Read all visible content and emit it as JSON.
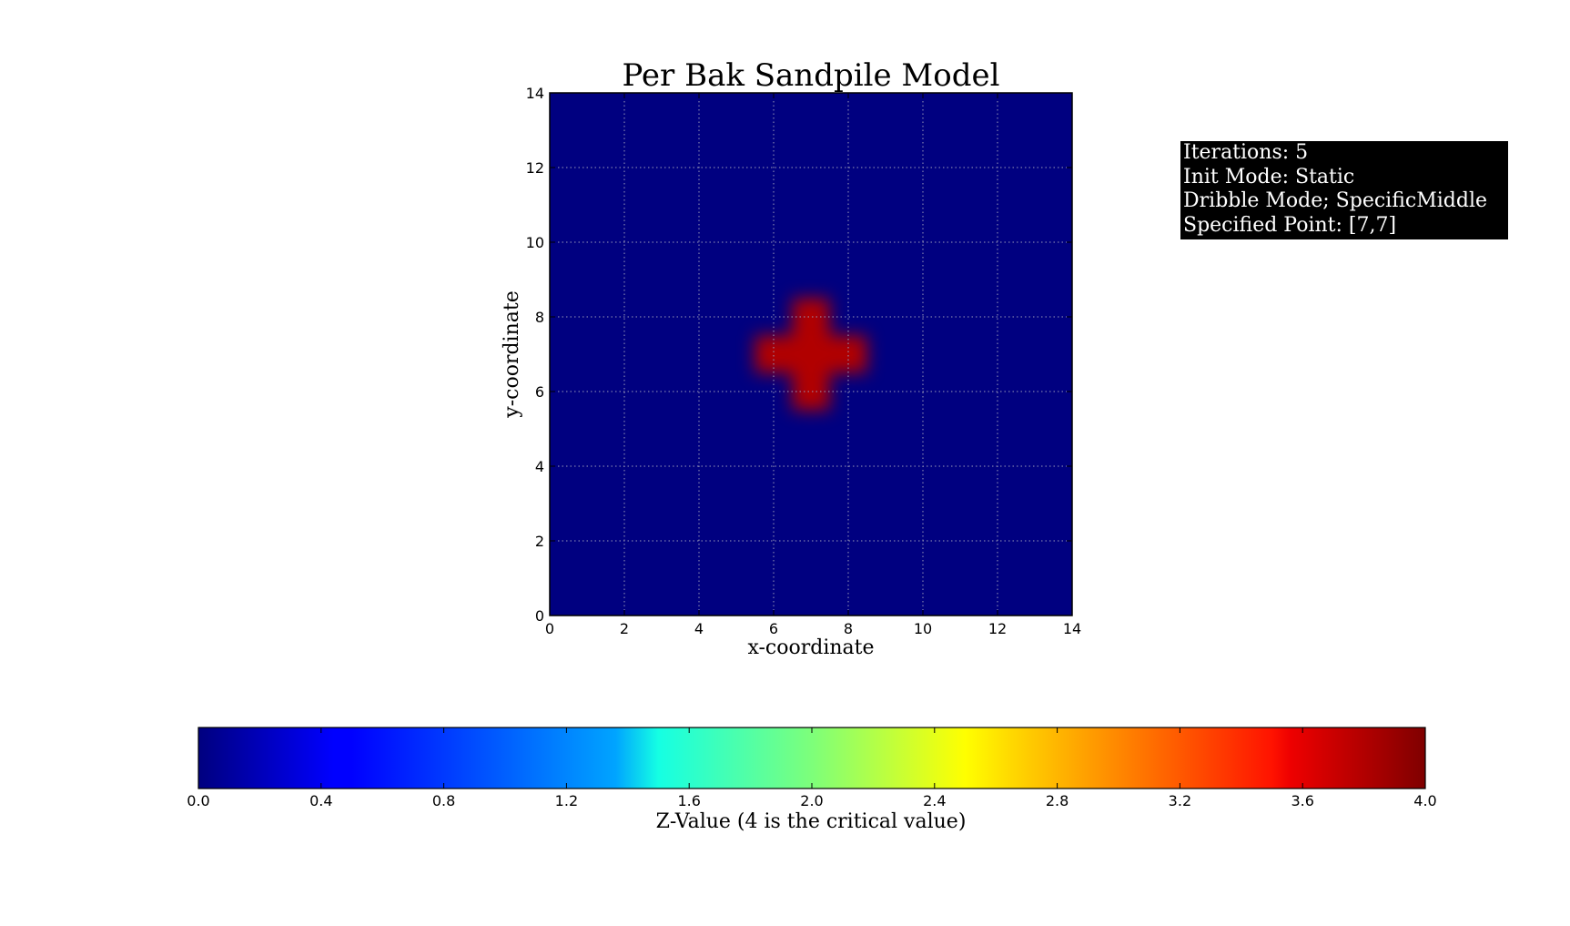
{
  "chart_data": [
    {
      "type": "heatmap",
      "title": "Per Bak Sandpile Model",
      "xlabel": "x-coordinate",
      "ylabel": "y-coordinate",
      "xlim": [
        0,
        14
      ],
      "ylim": [
        0,
        14
      ],
      "xticks": [
        "0",
        "2",
        "4",
        "6",
        "8",
        "10",
        "12",
        "14"
      ],
      "yticks": [
        "0",
        "2",
        "4",
        "6",
        "8",
        "10",
        "12",
        "14"
      ],
      "grid": true,
      "colormap": "jet",
      "vmin": 0,
      "vmax": 4,
      "cells": [
        {
          "x": 7,
          "y": 7,
          "value": 3.8
        },
        {
          "x": 6,
          "y": 7,
          "value": 3.8
        },
        {
          "x": 8,
          "y": 7,
          "value": 3.8
        },
        {
          "x": 7,
          "y": 6,
          "value": 3.8
        },
        {
          "x": 7,
          "y": 8,
          "value": 3.8
        }
      ],
      "background_value": 0
    },
    {
      "type": "colorbar",
      "label": "Z-Value (4 is the critical value)",
      "range": [
        0,
        4
      ],
      "ticks": [
        "0.0",
        "0.4",
        "0.8",
        "1.2",
        "1.6",
        "2.0",
        "2.4",
        "2.8",
        "3.2",
        "3.6",
        "4.0"
      ],
      "colormap": "jet",
      "orientation": "horizontal"
    }
  ],
  "info_box": {
    "lines": [
      "Iterations: 5",
      "Init Mode: Static",
      "Dribble Mode; SpecificMiddle",
      "Specified Point: [7,7]"
    ]
  }
}
